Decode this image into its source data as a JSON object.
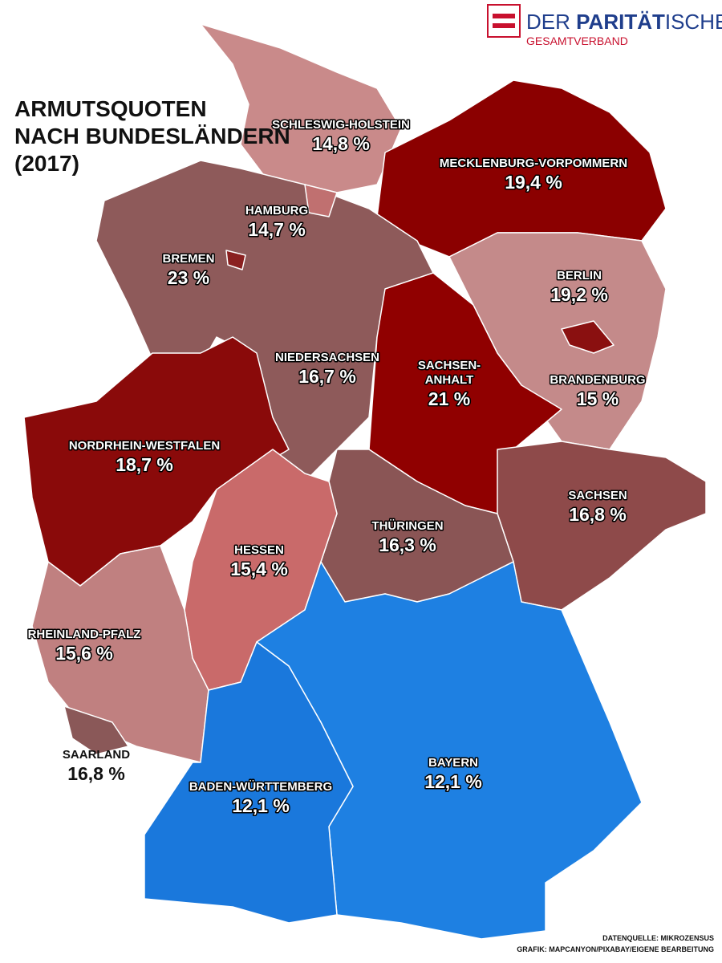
{
  "title": [
    "ARMUTSQUOTEN",
    "NACH BUNDESLÄNDERN",
    "(2017)"
  ],
  "logo": {
    "parts": [
      "DER ",
      "PARITÄT",
      "ISCHE"
    ],
    "subtitle": "GESAMTVERBAND"
  },
  "regions": [
    {
      "name": "SCHLESWIG-HOLSTEIN",
      "value": "14,8 %"
    },
    {
      "name": "MECKLENBURG-VORPOMMERN",
      "value": "19,4 %"
    },
    {
      "name": "HAMBURG",
      "value": "14,7 %"
    },
    {
      "name": "BREMEN",
      "value": "23 %"
    },
    {
      "name": "BERLIN",
      "value": "19,2 %"
    },
    {
      "name": "NIEDERSACHSEN",
      "value": "16,7 %"
    },
    {
      "name": "SACHSEN-\nANHALT",
      "value": "21 %"
    },
    {
      "name": "BRANDENBURG",
      "value": "15 %"
    },
    {
      "name": "NORDRHEIN-WESTFALEN",
      "value": "18,7 %"
    },
    {
      "name": "SACHSEN",
      "value": "16,8 %"
    },
    {
      "name": "THÜRINGEN",
      "value": "16,3 %"
    },
    {
      "name": "HESSEN",
      "value": "15,4 %"
    },
    {
      "name": "RHEINLAND-PFALZ",
      "value": "15,6 %"
    },
    {
      "name": "SAARLAND",
      "value": "16,8 %"
    },
    {
      "name": "BAYERN",
      "value": "12,1 %"
    },
    {
      "name": "BADEN-WÜRTTEMBERG",
      "value": "12,1 %"
    }
  ],
  "sources": [
    "DATENQUELLE: MIKROZENSUS",
    "GRAFIK: MAPCANYON/PIXABAY/EIGENE BEARBEITUNG"
  ]
}
